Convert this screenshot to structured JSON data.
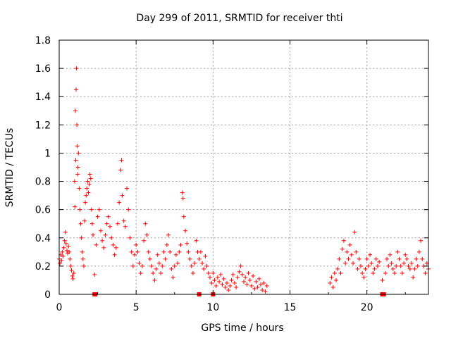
{
  "chart_data": {
    "type": "scatter",
    "title": "Day 299 of 2011, SRMTID for receiver thti",
    "xlabel": "GPS time / hours",
    "ylabel": "SRMTID / TECUs",
    "xlim": [
      0,
      24
    ],
    "ylim": [
      0,
      1.8
    ],
    "grid": true,
    "marker": "plus",
    "point_color": "#ff0000",
    "xticks": [
      {
        "value": 0,
        "label": "0"
      },
      {
        "value": 5,
        "label": "5"
      },
      {
        "value": 10,
        "label": "10"
      },
      {
        "value": 15,
        "label": "15"
      },
      {
        "value": 20,
        "label": "20"
      }
    ],
    "yticks": [
      {
        "value": 0,
        "label": "0"
      },
      {
        "value": 0.2,
        "label": "0.2"
      },
      {
        "value": 0.4,
        "label": "0.4"
      },
      {
        "value": 0.6,
        "label": "0.6"
      },
      {
        "value": 0.8,
        "label": "0.8"
      },
      {
        "value": 1.0,
        "label": "1"
      },
      {
        "value": 1.2,
        "label": "1.2"
      },
      {
        "value": 1.4,
        "label": "1.4"
      },
      {
        "value": 1.6,
        "label": "1.6"
      },
      {
        "value": 1.8,
        "label": "1.8"
      }
    ],
    "series": [
      {
        "name": "SRMTID",
        "points": [
          [
            0.0,
            0.25
          ],
          [
            0.05,
            0.22
          ],
          [
            0.1,
            0.28
          ],
          [
            0.15,
            0.24
          ],
          [
            0.2,
            0.3
          ],
          [
            0.25,
            0.27
          ],
          [
            0.3,
            0.33
          ],
          [
            0.35,
            0.38
          ],
          [
            0.4,
            0.44
          ],
          [
            0.45,
            0.36
          ],
          [
            0.5,
            0.31
          ],
          [
            0.55,
            0.29
          ],
          [
            0.6,
            0.34
          ],
          [
            0.65,
            0.3
          ],
          [
            0.7,
            0.25
          ],
          [
            0.75,
            0.2
          ],
          [
            0.8,
            0.17
          ],
          [
            0.85,
            0.13
          ],
          [
            0.9,
            0.11
          ],
          [
            0.95,
            0.15
          ],
          [
            1.0,
            0.8
          ],
          [
            1.02,
            0.62
          ],
          [
            1.05,
            1.3
          ],
          [
            1.08,
            0.95
          ],
          [
            1.1,
            1.45
          ],
          [
            1.12,
            1.6
          ],
          [
            1.15,
            1.2
          ],
          [
            1.18,
            1.05
          ],
          [
            1.2,
            0.85
          ],
          [
            1.22,
            0.9
          ],
          [
            1.25,
            1.0
          ],
          [
            1.3,
            0.75
          ],
          [
            1.35,
            0.6
          ],
          [
            1.4,
            0.5
          ],
          [
            1.45,
            0.4
          ],
          [
            1.5,
            0.3
          ],
          [
            1.55,
            0.25
          ],
          [
            1.6,
            0.2
          ],
          [
            1.65,
            0.52
          ],
          [
            1.7,
            0.65
          ],
          [
            1.75,
            0.7
          ],
          [
            1.8,
            0.75
          ],
          [
            1.85,
            0.8
          ],
          [
            1.9,
            0.72
          ],
          [
            1.95,
            0.78
          ],
          [
            2.0,
            0.85
          ],
          [
            2.05,
            0.82
          ],
          [
            2.1,
            0.6
          ],
          [
            2.15,
            0.5
          ],
          [
            2.2,
            0.42
          ],
          [
            2.3,
            0.14
          ],
          [
            2.4,
            0.35
          ],
          [
            2.5,
            0.55
          ],
          [
            2.6,
            0.6
          ],
          [
            2.7,
            0.45
          ],
          [
            2.8,
            0.38
          ],
          [
            2.9,
            0.33
          ],
          [
            3.0,
            0.42
          ],
          [
            3.1,
            0.5
          ],
          [
            3.2,
            0.55
          ],
          [
            3.3,
            0.48
          ],
          [
            3.4,
            0.4
          ],
          [
            3.5,
            0.35
          ],
          [
            3.6,
            0.28
          ],
          [
            3.7,
            0.33
          ],
          [
            3.8,
            0.5
          ],
          [
            3.9,
            0.65
          ],
          [
            4.0,
            0.88
          ],
          [
            4.05,
            0.95
          ],
          [
            4.1,
            0.7
          ],
          [
            4.2,
            0.52
          ],
          [
            4.3,
            0.48
          ],
          [
            4.4,
            0.75
          ],
          [
            4.5,
            0.6
          ],
          [
            4.6,
            0.4
          ],
          [
            4.7,
            0.3
          ],
          [
            4.8,
            0.2
          ],
          [
            4.9,
            0.28
          ],
          [
            5.0,
            0.35
          ],
          [
            5.1,
            0.3
          ],
          [
            5.2,
            0.22
          ],
          [
            5.3,
            0.15
          ],
          [
            5.4,
            0.2
          ],
          [
            5.5,
            0.38
          ],
          [
            5.6,
            0.5
          ],
          [
            5.7,
            0.42
          ],
          [
            5.8,
            0.3
          ],
          [
            5.9,
            0.25
          ],
          [
            6.0,
            0.2
          ],
          [
            6.1,
            0.15
          ],
          [
            6.2,
            0.1
          ],
          [
            6.3,
            0.18
          ],
          [
            6.4,
            0.28
          ],
          [
            6.5,
            0.22
          ],
          [
            6.6,
            0.15
          ],
          [
            6.7,
            0.2
          ],
          [
            6.8,
            0.3
          ],
          [
            6.9,
            0.25
          ],
          [
            7.0,
            0.35
          ],
          [
            7.1,
            0.42
          ],
          [
            7.2,
            0.3
          ],
          [
            7.3,
            0.18
          ],
          [
            7.4,
            0.12
          ],
          [
            7.5,
            0.2
          ],
          [
            7.6,
            0.28
          ],
          [
            7.7,
            0.22
          ],
          [
            7.8,
            0.3
          ],
          [
            7.9,
            0.35
          ],
          [
            8.0,
            0.72
          ],
          [
            8.05,
            0.68
          ],
          [
            8.1,
            0.55
          ],
          [
            8.2,
            0.45
          ],
          [
            8.3,
            0.36
          ],
          [
            8.4,
            0.3
          ],
          [
            8.5,
            0.25
          ],
          [
            8.6,
            0.2
          ],
          [
            8.7,
            0.15
          ],
          [
            8.8,
            0.22
          ],
          [
            8.9,
            0.38
          ],
          [
            9.0,
            0.3
          ],
          [
            9.1,
            0.25
          ],
          [
            9.2,
            0.3
          ],
          [
            9.3,
            0.22
          ],
          [
            9.4,
            0.18
          ],
          [
            9.5,
            0.27
          ],
          [
            9.6,
            0.2
          ],
          [
            9.7,
            0.15
          ],
          [
            9.8,
            0.12
          ],
          [
            9.9,
            0.08
          ],
          [
            10.0,
            0.15
          ],
          [
            10.1,
            0.1
          ],
          [
            10.2,
            0.06
          ],
          [
            10.3,
            0.12
          ],
          [
            10.4,
            0.09
          ],
          [
            10.5,
            0.14
          ],
          [
            10.6,
            0.07
          ],
          [
            10.7,
            0.11
          ],
          [
            10.8,
            0.05
          ],
          [
            10.9,
            0.08
          ],
          [
            11.0,
            0.03
          ],
          [
            11.1,
            0.06
          ],
          [
            11.2,
            0.1
          ],
          [
            11.3,
            0.14
          ],
          [
            11.4,
            0.08
          ],
          [
            11.5,
            0.05
          ],
          [
            11.6,
            0.12
          ],
          [
            11.7,
            0.16
          ],
          [
            11.8,
            0.2
          ],
          [
            11.9,
            0.14
          ],
          [
            12.0,
            0.09
          ],
          [
            12.1,
            0.12
          ],
          [
            12.2,
            0.07
          ],
          [
            12.3,
            0.15
          ],
          [
            12.4,
            0.1
          ],
          [
            12.5,
            0.06
          ],
          [
            12.6,
            0.13
          ],
          [
            12.7,
            0.04
          ],
          [
            12.8,
            0.09
          ],
          [
            12.9,
            0.05
          ],
          [
            13.0,
            0.11
          ],
          [
            13.1,
            0.07
          ],
          [
            13.2,
            0.03
          ],
          [
            13.3,
            0.08
          ],
          [
            13.4,
            0.02
          ],
          [
            13.5,
            0.06
          ],
          [
            17.6,
            0.08
          ],
          [
            17.7,
            0.12
          ],
          [
            17.8,
            0.05
          ],
          [
            17.9,
            0.15
          ],
          [
            18.0,
            0.1
          ],
          [
            18.1,
            0.18
          ],
          [
            18.2,
            0.25
          ],
          [
            18.3,
            0.15
          ],
          [
            18.4,
            0.32
          ],
          [
            18.5,
            0.38
          ],
          [
            18.6,
            0.22
          ],
          [
            18.7,
            0.3
          ],
          [
            18.8,
            0.25
          ],
          [
            18.9,
            0.35
          ],
          [
            19.0,
            0.28
          ],
          [
            19.1,
            0.22
          ],
          [
            19.2,
            0.44
          ],
          [
            19.3,
            0.3
          ],
          [
            19.4,
            0.18
          ],
          [
            19.5,
            0.25
          ],
          [
            19.6,
            0.2
          ],
          [
            19.7,
            0.15
          ],
          [
            19.8,
            0.12
          ],
          [
            19.9,
            0.18
          ],
          [
            20.0,
            0.25
          ],
          [
            20.1,
            0.2
          ],
          [
            20.2,
            0.28
          ],
          [
            20.3,
            0.22
          ],
          [
            20.4,
            0.15
          ],
          [
            20.5,
            0.18
          ],
          [
            20.6,
            0.25
          ],
          [
            20.7,
            0.2
          ],
          [
            20.8,
            0.23
          ],
          [
            21.0,
            0.1
          ],
          [
            21.2,
            0.15
          ],
          [
            21.3,
            0.25
          ],
          [
            21.4,
            0.2
          ],
          [
            21.5,
            0.28
          ],
          [
            21.6,
            0.22
          ],
          [
            21.7,
            0.18
          ],
          [
            21.8,
            0.15
          ],
          [
            21.9,
            0.2
          ],
          [
            22.0,
            0.3
          ],
          [
            22.1,
            0.25
          ],
          [
            22.2,
            0.2
          ],
          [
            22.3,
            0.15
          ],
          [
            22.4,
            0.22
          ],
          [
            22.5,
            0.28
          ],
          [
            22.6,
            0.25
          ],
          [
            22.7,
            0.2
          ],
          [
            22.8,
            0.18
          ],
          [
            22.9,
            0.22
          ],
          [
            23.0,
            0.12
          ],
          [
            23.1,
            0.18
          ],
          [
            23.2,
            0.25
          ],
          [
            23.3,
            0.2
          ],
          [
            23.4,
            0.3
          ],
          [
            23.5,
            0.38
          ],
          [
            23.6,
            0.25
          ],
          [
            23.7,
            0.2
          ],
          [
            23.8,
            0.15
          ],
          [
            23.9,
            0.22
          ],
          [
            24.0,
            0.18
          ]
        ],
        "zero_markers": [
          2.3,
          2.35,
          9.1,
          10.0,
          21.0,
          21.1
        ]
      }
    ]
  }
}
